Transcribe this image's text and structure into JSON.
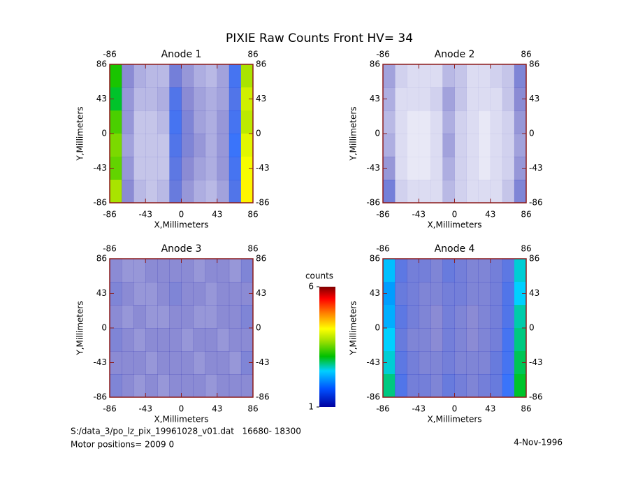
{
  "title": "PIXIE Raw Counts Front HV= 34",
  "footer": {
    "file": "S:/data_3/po_lz_pix_19961028_v01.dat   16680- 18300",
    "motor": "Motor positions= 2009 0",
    "date": "4-Nov-1996"
  },
  "colorbar": {
    "label": "counts",
    "lim": [
      1,
      6
    ],
    "ticks": [
      1,
      6
    ]
  },
  "chart_data": [
    {
      "type": "heatmap",
      "title": "Anode 1",
      "xlabel": "X,Millimeters",
      "ylabel": "Y,Millimeters",
      "xlim": [
        -86,
        86
      ],
      "ylim": [
        -86,
        86
      ],
      "xticks": [
        -86,
        -43,
        0,
        43,
        86
      ],
      "x2ticks": [
        -86,
        86
      ],
      "yticks": [
        -86,
        -43,
        0,
        43,
        86
      ],
      "z": [
        [
          3.2,
          1.0,
          0.7,
          0.6,
          0.6,
          1.2,
          0.9,
          0.7,
          0.6,
          0.8,
          1.6,
          3.8
        ],
        [
          3.0,
          0.9,
          0.6,
          0.6,
          0.7,
          1.5,
          1.0,
          0.8,
          0.7,
          0.8,
          1.5,
          4.0
        ],
        [
          3.4,
          0.9,
          0.5,
          0.5,
          0.6,
          1.6,
          1.1,
          0.8,
          0.7,
          0.9,
          1.6,
          3.9
        ],
        [
          3.6,
          0.8,
          0.5,
          0.5,
          0.5,
          1.5,
          1.1,
          0.9,
          0.7,
          0.9,
          1.7,
          4.1
        ],
        [
          3.5,
          0.9,
          0.5,
          0.5,
          0.5,
          1.4,
          1.0,
          0.8,
          0.7,
          0.9,
          1.6,
          4.2
        ],
        [
          3.8,
          1.0,
          0.6,
          0.5,
          0.6,
          1.3,
          0.9,
          0.7,
          0.6,
          0.8,
          1.5,
          4.3
        ]
      ]
    },
    {
      "type": "heatmap",
      "title": "Anode 2",
      "xlabel": "X,Millimeters",
      "ylabel": "Y,Millimeters",
      "xlim": [
        -86,
        86
      ],
      "ylim": [
        -86,
        86
      ],
      "xticks": [
        -86,
        -43,
        0,
        43,
        86
      ],
      "x2ticks": [
        -86,
        86
      ],
      "yticks": [
        -86,
        -43,
        0,
        43,
        86
      ],
      "z": [
        [
          0.8,
          0.4,
          0.3,
          0.3,
          0.3,
          0.6,
          0.5,
          0.3,
          0.3,
          0.4,
          0.5,
          1.1
        ],
        [
          0.7,
          0.3,
          0.3,
          0.3,
          0.4,
          0.8,
          0.5,
          0.3,
          0.3,
          0.3,
          0.5,
          1.0
        ],
        [
          0.6,
          0.3,
          0.2,
          0.2,
          0.3,
          0.7,
          0.4,
          0.3,
          0.2,
          0.3,
          0.4,
          0.9
        ],
        [
          0.7,
          0.3,
          0.2,
          0.2,
          0.3,
          0.8,
          0.4,
          0.3,
          0.2,
          0.3,
          0.4,
          0.8
        ],
        [
          0.9,
          0.3,
          0.2,
          0.2,
          0.3,
          0.7,
          0.4,
          0.3,
          0.2,
          0.3,
          0.4,
          0.9
        ],
        [
          1.2,
          0.4,
          0.3,
          0.3,
          0.3,
          0.6,
          0.4,
          0.3,
          0.3,
          0.3,
          0.5,
          1.1
        ]
      ]
    },
    {
      "type": "heatmap",
      "title": "Anode 3",
      "xlabel": "X,Millimeters",
      "ylabel": "Y,Millimeters",
      "xlim": [
        -86,
        86
      ],
      "ylim": [
        -86,
        86
      ],
      "xticks": [
        -86,
        -43,
        0,
        43,
        86
      ],
      "x2ticks": [
        -86,
        86
      ],
      "yticks": [
        -86,
        -43,
        0,
        43,
        86
      ],
      "z": [
        [
          1.0,
          0.9,
          0.9,
          1.0,
          1.0,
          1.0,
          1.0,
          0.9,
          1.0,
          1.0,
          0.9,
          1.1
        ],
        [
          1.1,
          1.0,
          0.9,
          0.9,
          1.0,
          1.1,
          1.0,
          1.0,
          0.9,
          1.0,
          1.0,
          1.0
        ],
        [
          1.0,
          0.9,
          1.0,
          0.9,
          0.9,
          1.0,
          1.0,
          0.9,
          0.9,
          1.0,
          1.0,
          1.1
        ],
        [
          1.1,
          1.0,
          0.9,
          1.0,
          1.0,
          1.0,
          0.9,
          1.0,
          1.0,
          0.9,
          1.0,
          1.0
        ],
        [
          1.0,
          1.0,
          1.0,
          0.9,
          1.0,
          1.0,
          1.0,
          0.9,
          1.0,
          1.0,
          0.9,
          1.1
        ],
        [
          1.1,
          1.0,
          0.9,
          1.0,
          0.9,
          1.0,
          1.0,
          1.0,
          0.9,
          1.0,
          1.0,
          1.0
        ]
      ]
    },
    {
      "type": "heatmap",
      "title": "Anode 4",
      "xlabel": "X,Millimeters",
      "ylabel": "Y,Millimeters",
      "xlim": [
        -86,
        86
      ],
      "ylim": [
        -86,
        86
      ],
      "xticks": [
        -86,
        -43,
        0,
        43,
        86
      ],
      "x2ticks": [
        -86,
        86
      ],
      "yticks": [
        -86,
        -43,
        0,
        43,
        86
      ],
      "z": [
        [
          2.4,
          1.4,
          1.2,
          1.2,
          1.1,
          1.3,
          1.2,
          1.1,
          1.1,
          1.2,
          1.4,
          2.6
        ],
        [
          2.2,
          1.3,
          1.2,
          1.1,
          1.1,
          1.2,
          1.2,
          1.1,
          1.1,
          1.2,
          1.5,
          2.5
        ],
        [
          2.3,
          1.4,
          1.2,
          1.1,
          1.0,
          1.2,
          1.1,
          1.0,
          1.1,
          1.2,
          1.5,
          2.7
        ],
        [
          2.5,
          1.3,
          1.1,
          1.1,
          1.0,
          1.2,
          1.1,
          1.0,
          1.1,
          1.2,
          1.6,
          2.8
        ],
        [
          2.6,
          1.4,
          1.2,
          1.1,
          1.1,
          1.2,
          1.1,
          1.1,
          1.1,
          1.3,
          1.6,
          2.9
        ],
        [
          2.8,
          1.5,
          1.2,
          1.2,
          1.1,
          1.3,
          1.2,
          1.1,
          1.2,
          1.3,
          1.7,
          3.0
        ]
      ]
    }
  ]
}
